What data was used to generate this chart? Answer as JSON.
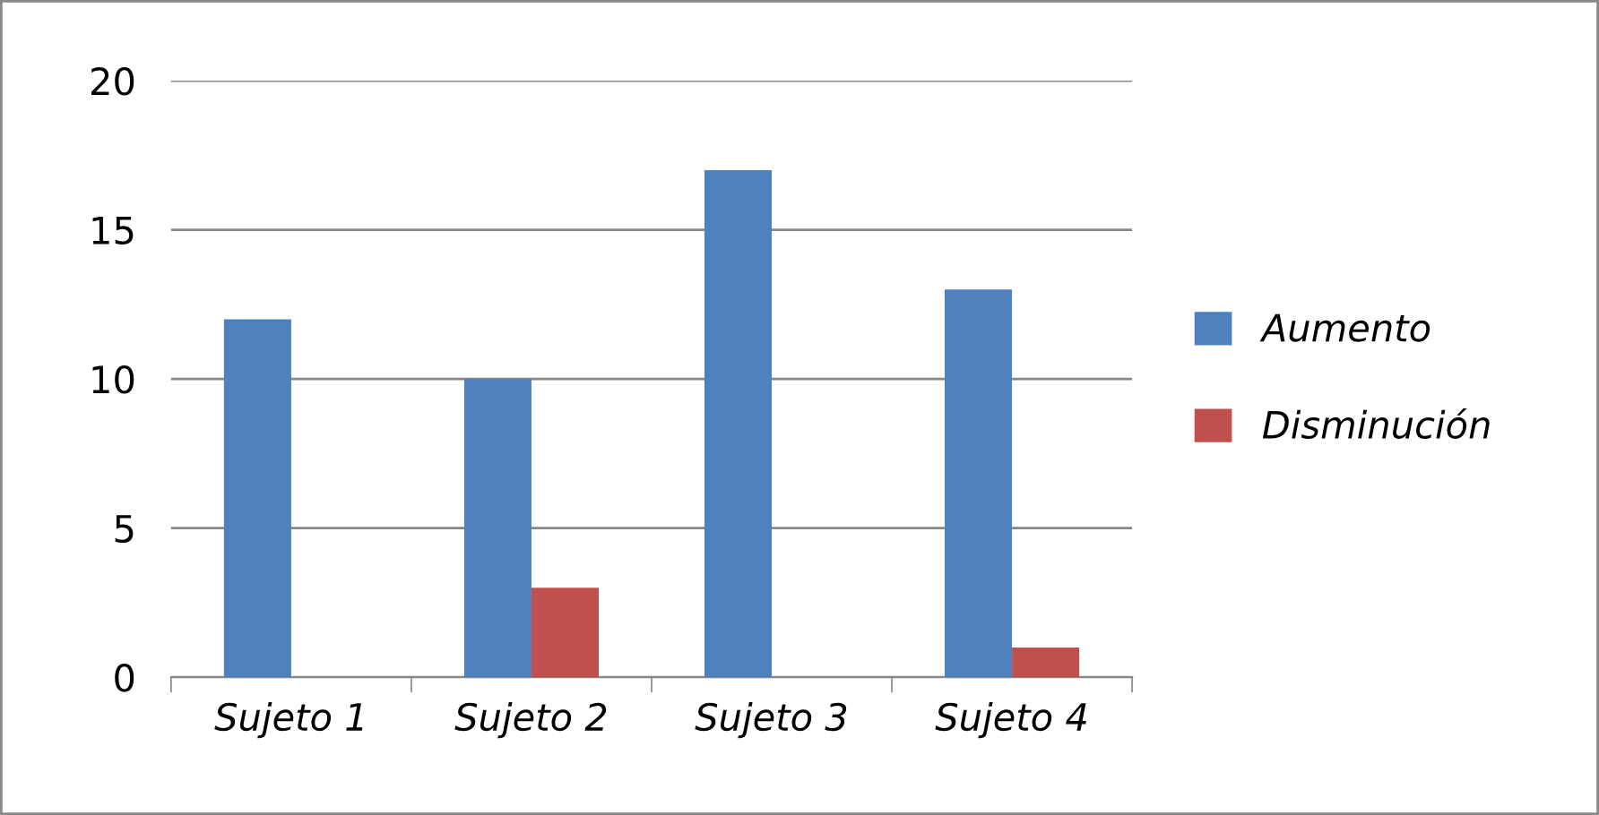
{
  "chart_data": {
    "type": "bar",
    "categories": [
      "Sujeto 1",
      "Sujeto 2",
      "Sujeto 3",
      "Sujeto 4"
    ],
    "series": [
      {
        "name": "Aumento",
        "color": "#4f81bd",
        "values": [
          12,
          10,
          17,
          13
        ]
      },
      {
        "name": "Disminución",
        "color": "#c0504d",
        "values": [
          0,
          3,
          0,
          1
        ]
      }
    ],
    "ylim": [
      0,
      20
    ],
    "yticks": [
      0,
      5,
      10,
      15,
      20
    ],
    "grid": "y",
    "legend": "right"
  }
}
